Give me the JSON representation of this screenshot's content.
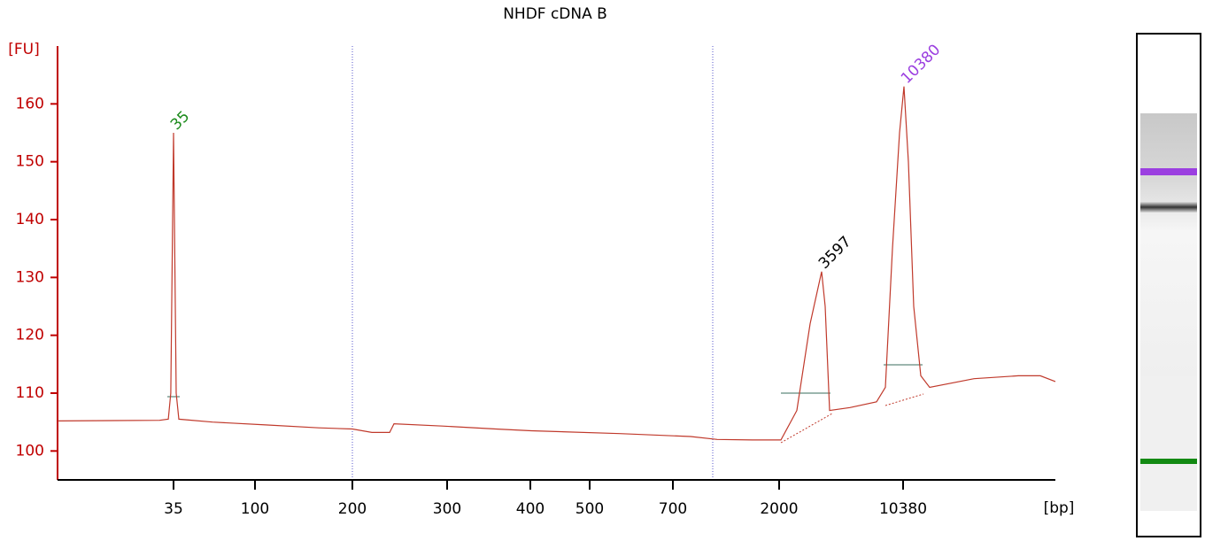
{
  "chart_data": {
    "type": "line",
    "title": "NHDF cDNA B",
    "y_label": "[FU]",
    "x_label": "[bp]",
    "x": [
      15,
      31.6,
      33.7,
      34.3,
      35,
      36.2,
      37.5,
      57.8,
      107.9,
      157.4,
      200,
      217.4,
      234.6,
      239,
      294.2,
      354.9,
      401.3,
      564.5,
      833.7,
      1084,
      1538,
      2048,
      2530,
      3018,
      3518,
      3687,
      3910,
      5126,
      7294,
      8208,
      9016,
      9906,
      10420,
      10621,
      10867,
      11203,
      11636,
      14086,
      17044,
      18747,
      20000
    ],
    "series": [
      {
        "name": "NHDF cDNA B",
        "color": "#c0392b",
        "values": [
          105.2,
          105.3,
          105.5,
          110,
          155,
          110,
          105.5,
          105,
          104.5,
          104,
          103.8,
          103.2,
          103.2,
          104.7,
          104.3,
          103.8,
          103.5,
          103,
          102.5,
          102,
          101.9,
          101.9,
          107,
          122,
          131,
          125,
          107,
          107.5,
          108.5,
          111,
          135,
          155,
          163,
          150,
          125,
          113,
          111,
          112.5,
          113,
          113,
          112
        ]
      }
    ],
    "xlim": [
      15,
      20000
    ],
    "xticks": [
      35,
      100,
      200,
      300,
      400,
      500,
      700,
      2000,
      10380
    ],
    "ylim": [
      95,
      170
    ],
    "yticks": [
      100,
      110,
      120,
      130,
      140,
      150,
      160
    ],
    "annotations": [
      {
        "text": "35",
        "x": 35,
        "y": 155,
        "color": "#1a8a1a"
      },
      {
        "text": "3597",
        "x": 3518,
        "y": 131,
        "color": "#000000"
      },
      {
        "text": "10380",
        "x": 10420,
        "y": 163,
        "color": "#9b3fe0"
      }
    ]
  }
}
